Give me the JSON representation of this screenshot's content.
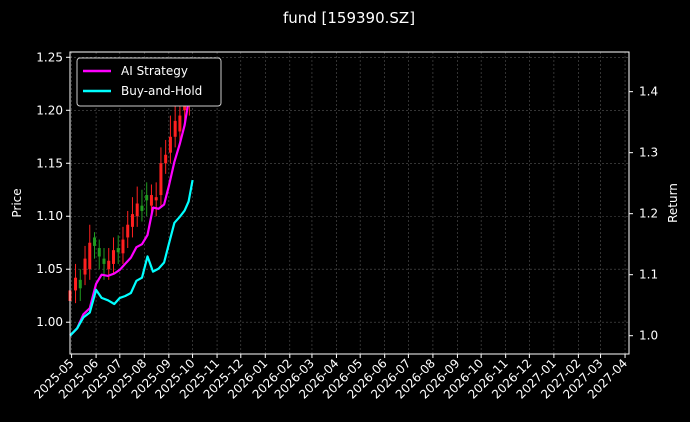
{
  "colors": {
    "background": "#000000",
    "foreground": "#ffffff",
    "grid": "#555555",
    "ai_strategy": "#ff00ff",
    "buy_and_hold": "#00ffff",
    "candle_up": "#ff2020",
    "candle_down": "#1f9a1f"
  },
  "chart_data": {
    "type": "line",
    "title": "fund [159390.SZ]",
    "ylabel": "Price",
    "y2label": "Return",
    "grid": true,
    "legend_position": "top-left",
    "x_tick_labels": [
      "2025-05",
      "2025-06",
      "2025-07",
      "2025-08",
      "2025-09",
      "2025-10",
      "2025-11",
      "2025-12",
      "2026-01",
      "2026-02",
      "2026-03",
      "2026-04",
      "2026-05",
      "2026-06",
      "2026-07",
      "2026-08",
      "2026-09",
      "2026-10",
      "2026-11",
      "2026-12",
      "2027-01",
      "2027-02",
      "2027-03",
      "2027-04"
    ],
    "xlim": [
      "2025-04-29",
      "2027-04-06"
    ],
    "ylim": [
      0.97,
      1.255
    ],
    "y_ticks": [
      1.0,
      1.05,
      1.1,
      1.15,
      1.2,
      1.25
    ],
    "y_tick_labels": [
      "1.00",
      "1.05",
      "1.10",
      "1.15",
      "1.20",
      "1.25"
    ],
    "y2lim": [
      0.97,
      1.465
    ],
    "y2_ticks": [
      1.0,
      1.1,
      1.2,
      1.3,
      1.4
    ],
    "y2_tick_labels": [
      "1.0",
      "1.1",
      "1.2",
      "1.3",
      "1.4"
    ],
    "series": [
      {
        "name": "AI Strategy",
        "axis": "right",
        "x": [
          "2025-04-29",
          "2025-05-08",
          "2025-05-16",
          "2025-05-24",
          "2025-06-01",
          "2025-06-08",
          "2025-06-16",
          "2025-06-24",
          "2025-07-01",
          "2025-07-08",
          "2025-07-15",
          "2025-07-22",
          "2025-07-29",
          "2025-08-05",
          "2025-08-12",
          "2025-08-19",
          "2025-08-26",
          "2025-09-01",
          "2025-09-08",
          "2025-09-15",
          "2025-09-21",
          "2025-09-26",
          "2025-10-01"
        ],
        "y": [
          1.0,
          1.012,
          1.035,
          1.045,
          1.085,
          1.1,
          1.098,
          1.102,
          1.108,
          1.118,
          1.128,
          1.145,
          1.15,
          1.165,
          1.21,
          1.208,
          1.215,
          1.245,
          1.285,
          1.315,
          1.345,
          1.385,
          1.415
        ]
      },
      {
        "name": "Buy-and-Hold",
        "axis": "right",
        "x": [
          "2025-04-29",
          "2025-05-08",
          "2025-05-16",
          "2025-05-24",
          "2025-06-01",
          "2025-06-08",
          "2025-06-16",
          "2025-06-24",
          "2025-07-01",
          "2025-07-08",
          "2025-07-15",
          "2025-07-22",
          "2025-07-29",
          "2025-08-05",
          "2025-08-12",
          "2025-08-19",
          "2025-08-26",
          "2025-09-01",
          "2025-09-08",
          "2025-09-15",
          "2025-09-21",
          "2025-09-26",
          "2025-10-01"
        ],
        "y": [
          1.0,
          1.012,
          1.03,
          1.038,
          1.075,
          1.062,
          1.058,
          1.052,
          1.062,
          1.065,
          1.07,
          1.09,
          1.095,
          1.13,
          1.105,
          1.11,
          1.12,
          1.15,
          1.185,
          1.195,
          1.205,
          1.22,
          1.255
        ]
      }
    ],
    "candles": {
      "axis": "left",
      "x": [
        "2025-04-29",
        "2025-05-06",
        "2025-05-12",
        "2025-05-18",
        "2025-05-24",
        "2025-05-30",
        "2025-06-05",
        "2025-06-11",
        "2025-06-17",
        "2025-06-23",
        "2025-06-29",
        "2025-07-05",
        "2025-07-11",
        "2025-07-17",
        "2025-07-23",
        "2025-07-29",
        "2025-08-04",
        "2025-08-10",
        "2025-08-16",
        "2025-08-22",
        "2025-08-28",
        "2025-09-03",
        "2025-09-09",
        "2025-09-15",
        "2025-09-21",
        "2025-09-27"
      ],
      "open": [
        1.02,
        1.03,
        1.04,
        1.045,
        1.05,
        1.08,
        1.07,
        1.06,
        1.05,
        1.055,
        1.07,
        1.065,
        1.08,
        1.09,
        1.1,
        1.11,
        1.12,
        1.11,
        1.115,
        1.12,
        1.15,
        1.16,
        1.175,
        1.18,
        1.2,
        1.205
      ],
      "close": [
        1.03,
        1.042,
        1.032,
        1.06,
        1.075,
        1.072,
        1.062,
        1.055,
        1.058,
        1.068,
        1.066,
        1.078,
        1.092,
        1.102,
        1.112,
        1.105,
        1.115,
        1.12,
        1.118,
        1.15,
        1.158,
        1.175,
        1.19,
        1.195,
        1.212,
        1.225
      ],
      "high": [
        1.045,
        1.055,
        1.05,
        1.072,
        1.092,
        1.085,
        1.078,
        1.07,
        1.07,
        1.08,
        1.082,
        1.09,
        1.105,
        1.118,
        1.128,
        1.125,
        1.132,
        1.13,
        1.132,
        1.165,
        1.172,
        1.195,
        1.205,
        1.21,
        1.228,
        1.24
      ],
      "low": [
        1.008,
        1.018,
        1.02,
        1.035,
        1.04,
        1.06,
        1.05,
        1.04,
        1.04,
        1.045,
        1.055,
        1.055,
        1.07,
        1.08,
        1.09,
        1.095,
        1.1,
        1.1,
        1.1,
        1.11,
        1.14,
        1.15,
        1.165,
        1.17,
        1.185,
        1.195
      ]
    }
  }
}
